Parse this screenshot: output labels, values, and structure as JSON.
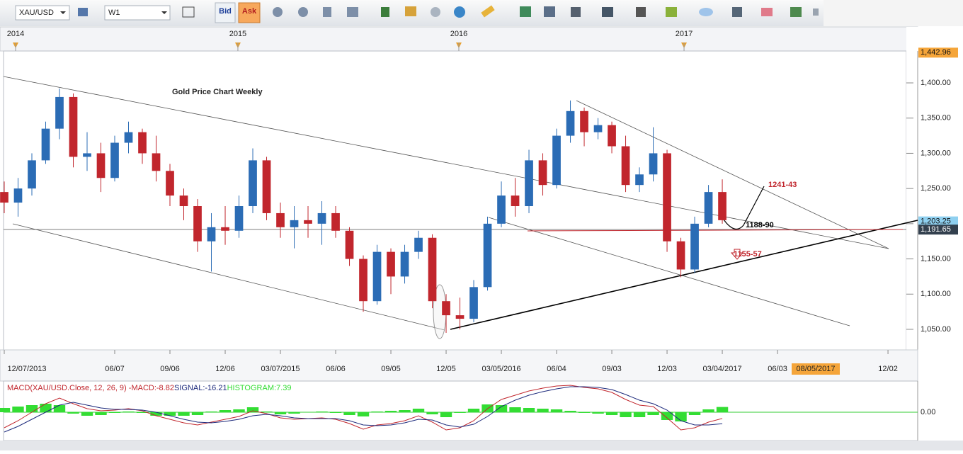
{
  "toolbar": {
    "symbol": "XAU/USD",
    "timeframe": "W1",
    "bid": "Bid",
    "ask": "Ask"
  },
  "chart_data": [
    {
      "type": "candlestick",
      "title": "Gold Price Chart Weekly",
      "up_color": "#2b6cb5",
      "down_color": "#c1262d",
      "open": [
        1245,
        1230,
        1250,
        1290,
        1335,
        1380,
        1295,
        1300,
        1265,
        1315,
        1330,
        1300,
        1275,
        1240,
        1225,
        1175,
        1195,
        1190,
        1225,
        1290,
        1215,
        1195,
        1205,
        1200,
        1215,
        1190,
        1150,
        1090,
        1160,
        1125,
        1160,
        1180,
        1090,
        1070,
        1065,
        1110,
        1200,
        1240,
        1225,
        1290,
        1255,
        1325,
        1360,
        1330,
        1340,
        1310,
        1255,
        1270,
        1300,
        1175,
        1135,
        1200,
        1245
      ],
      "high": [
        1260,
        1265,
        1300,
        1345,
        1392,
        1385,
        1330,
        1315,
        1325,
        1345,
        1335,
        1325,
        1285,
        1250,
        1235,
        1215,
        1225,
        1240,
        1307,
        1295,
        1230,
        1225,
        1225,
        1232,
        1225,
        1195,
        1155,
        1170,
        1165,
        1170,
        1190,
        1185,
        1100,
        1095,
        1120,
        1210,
        1260,
        1265,
        1305,
        1300,
        1335,
        1375,
        1365,
        1350,
        1345,
        1325,
        1280,
        1337,
        1305,
        1180,
        1210,
        1255,
        1263
      ],
      "low": [
        1215,
        1210,
        1240,
        1285,
        1320,
        1280,
        1275,
        1245,
        1260,
        1300,
        1285,
        1260,
        1225,
        1205,
        1160,
        1132,
        1170,
        1180,
        1215,
        1205,
        1180,
        1165,
        1180,
        1170,
        1180,
        1140,
        1075,
        1085,
        1100,
        1115,
        1150,
        1080,
        1045,
        1050,
        1060,
        1105,
        1195,
        1210,
        1215,
        1240,
        1250,
        1315,
        1310,
        1320,
        1300,
        1245,
        1245,
        1260,
        1160,
        1124,
        1130,
        1195,
        1200
      ],
      "close": [
        1230,
        1250,
        1290,
        1335,
        1380,
        1295,
        1300,
        1265,
        1315,
        1330,
        1300,
        1275,
        1240,
        1225,
        1175,
        1195,
        1190,
        1225,
        1290,
        1215,
        1195,
        1205,
        1200,
        1215,
        1190,
        1150,
        1090,
        1160,
        1125,
        1160,
        1180,
        1090,
        1070,
        1065,
        1110,
        1200,
        1240,
        1225,
        1290,
        1255,
        1325,
        1360,
        1330,
        1340,
        1310,
        1255,
        1270,
        1300,
        1175,
        1135,
        1200,
        1245,
        1205
      ],
      "xlim": [
        0,
        65.33
      ],
      "xticks": [
        {
          "value": 0,
          "label": "12/07/2013"
        },
        {
          "value": 8,
          "label": "06/07"
        },
        {
          "value": 12,
          "label": "09/06"
        },
        {
          "value": 16,
          "label": "12/06"
        },
        {
          "value": 20,
          "label": "03/07/2015"
        },
        {
          "value": 24,
          "label": "06/06"
        },
        {
          "value": 28,
          "label": "09/05"
        },
        {
          "value": 32,
          "label": "12/05"
        },
        {
          "value": 36,
          "label": "03/05/2016"
        },
        {
          "value": 40,
          "label": "06/04"
        },
        {
          "value": 44,
          "label": "09/03"
        },
        {
          "value": 48,
          "label": "12/03"
        },
        {
          "value": 52,
          "label": "03/04/2017"
        },
        {
          "value": 56,
          "label": "06/03"
        },
        {
          "value": 64,
          "label": "12/02"
        }
      ],
      "year_ticks": [
        {
          "value": 0.82,
          "label": "2014"
        },
        {
          "value": 16.92,
          "label": "2015"
        },
        {
          "value": 32.92,
          "label": "2016"
        },
        {
          "value": 49.23,
          "label": "2017"
        }
      ],
      "cursor_date": "08/05/2017",
      "ylim": [
        1020.8,
        1445.3
      ],
      "yticks": [
        {
          "value": 1050,
          "label": "1,050.00"
        },
        {
          "value": 1100,
          "label": "1,100.00"
        },
        {
          "value": 1150,
          "label": "1,150.00"
        },
        {
          "value": 1200,
          "label": "1,200.00"
        },
        {
          "value": 1250,
          "label": "1,250.00"
        },
        {
          "value": 1300,
          "label": "1,300.00"
        },
        {
          "value": 1350,
          "label": "1,350.00"
        },
        {
          "value": 1400,
          "label": "1,400.00"
        }
      ],
      "price_labels": [
        {
          "value": 1442.96,
          "label": "1,442.96",
          "color": "#f5a53a"
        },
        {
          "value": 1203.25,
          "label": "1,203.25",
          "color": "#8fd0f0"
        },
        {
          "value": 1191.65,
          "label": "1,191.65",
          "color": "#33404e"
        }
      ],
      "annotations": [
        "1241-43",
        "1188-90",
        "1155-57"
      ]
    },
    {
      "type": "macd",
      "label": "MACD(XAU/USD.Close, 12, 26, 9) -",
      "series": [
        {
          "name": "MACD:",
          "color": "#c1262d",
          "values": [
            -22,
            -12,
            0,
            12,
            20,
            12,
            5,
            2,
            3,
            5,
            2,
            -5,
            -10,
            -15,
            -18,
            -14,
            -10,
            -6,
            2,
            -2,
            -8,
            -10,
            -9,
            -8,
            -10,
            -16,
            -24,
            -18,
            -16,
            -12,
            -5,
            -14,
            -25,
            -22,
            -12,
            5,
            18,
            24,
            30,
            34,
            37,
            38,
            35,
            33,
            28,
            18,
            10,
            8,
            -8,
            -25,
            -22,
            -14,
            -8.82
          ]
        },
        {
          "name": "SIGNAL:",
          "color": "#1d2a7c",
          "values": [
            -28,
            -20,
            -10,
            0,
            10,
            14,
            10,
            6,
            4,
            4,
            3,
            0,
            -5,
            -10,
            -14,
            -15,
            -13,
            -10,
            -5,
            -3,
            -5,
            -8,
            -9,
            -9,
            -9,
            -12,
            -18,
            -19,
            -18,
            -15,
            -10,
            -11,
            -18,
            -21,
            -17,
            -6,
            8,
            17,
            24,
            29,
            33,
            36,
            36,
            35,
            32,
            25,
            17,
            12,
            3,
            -12,
            -18,
            -18,
            -16.21
          ]
        },
        {
          "name": "HISTOGRAM:",
          "color": "#33dd33",
          "values": [
            6,
            8,
            10,
            12,
            10,
            -2,
            -5,
            -4,
            -1,
            1,
            -1,
            -5,
            -5,
            -5,
            -4,
            1,
            3,
            4,
            7,
            1,
            -3,
            -2,
            0,
            1,
            -1,
            -4,
            -6,
            1,
            2,
            3,
            5,
            -3,
            -7,
            -1,
            5,
            11,
            10,
            7,
            6,
            5,
            4,
            2,
            -1,
            -2,
            -4,
            -7,
            -7,
            -4,
            -11,
            -13,
            -4,
            4,
            7.39
          ]
        }
      ],
      "ylim": [
        -40,
        42
      ],
      "yticks": [
        {
          "value": 0,
          "label": "0.00"
        }
      ]
    }
  ]
}
